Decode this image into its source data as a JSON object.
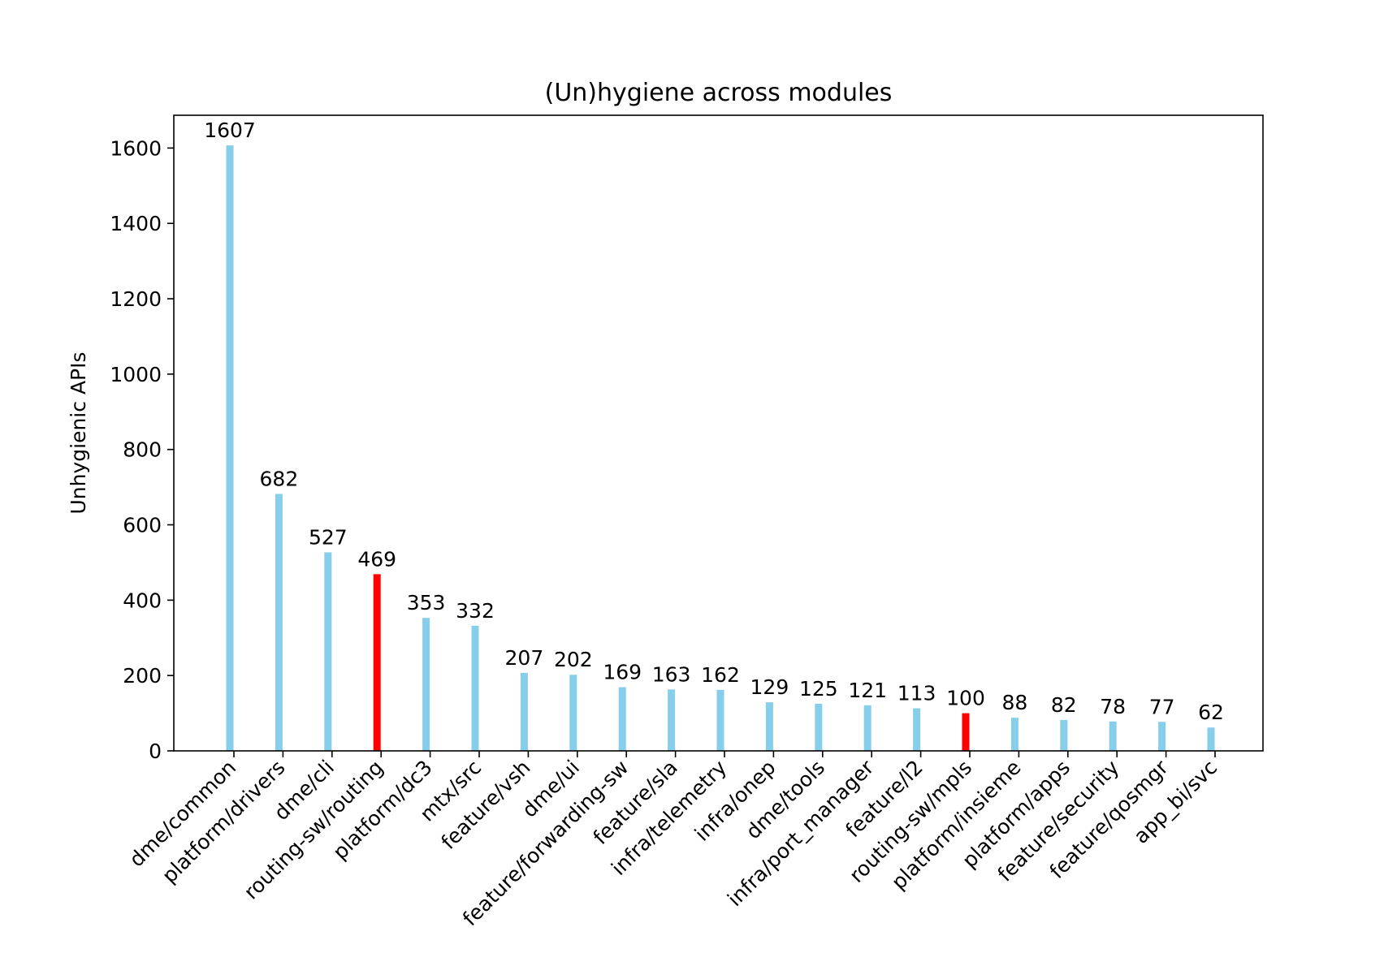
{
  "chart_data": {
    "type": "bar",
    "title": "(Un)hygiene across modules",
    "xlabel": "",
    "ylabel": "Unhygienic APIs",
    "categories": [
      "dme/common",
      "platform/drivers",
      "dme/cli",
      "routing-sw/routing",
      "platform/dc3",
      "mtx/src",
      "feature/vsh",
      "dme/ui",
      "feature/forwarding-sw",
      "feature/sla",
      "infra/telemetry",
      "infra/onep",
      "dme/tools",
      "infra/port_manager",
      "feature/l2",
      "routing-sw/mpls",
      "platform/insieme",
      "platform/apps",
      "feature/security",
      "feature/qosmgr",
      "app_bi/svc"
    ],
    "values": [
      1607,
      682,
      527,
      469,
      353,
      332,
      207,
      202,
      169,
      163,
      162,
      129,
      125,
      121,
      113,
      100,
      88,
      82,
      78,
      77,
      62
    ],
    "value_labels": [
      "1607",
      "682",
      "527",
      "469",
      "353",
      "332",
      "207",
      "202",
      "169",
      "163",
      "162",
      "129",
      "125",
      "121",
      "113",
      "100",
      "88",
      "82",
      "78",
      "77",
      "62"
    ],
    "highlighted": [
      "routing-sw/routing",
      "routing-sw/mpls"
    ],
    "yticks": [
      0,
      200,
      400,
      600,
      800,
      1000,
      1200,
      1400,
      1600
    ],
    "ytick_labels": [
      "0",
      "200",
      "400",
      "600",
      "800",
      "1000",
      "1200",
      "1400",
      "1600"
    ],
    "ylim": [
      0,
      1687
    ],
    "grid": false,
    "colors": {
      "bar": "#87ceeb",
      "highlight": "#ff0000",
      "axis": "#000000"
    }
  }
}
